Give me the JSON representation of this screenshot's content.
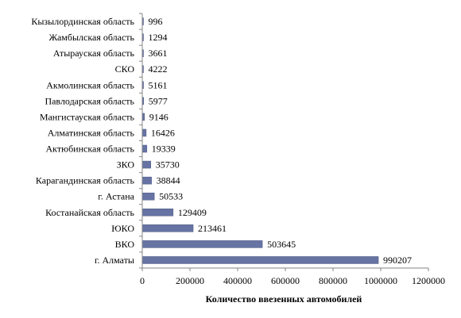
{
  "chart_data": {
    "type": "bar",
    "orientation": "horizontal",
    "categories": [
      "Кызылординская область",
      "Жамбылская область",
      "Атырауская область",
      "СКО",
      "Акмолинская область",
      "Павлодарская область",
      "Мангистауская область",
      "Алматинская область",
      "Актюбинская область",
      "ЗКО",
      "Карагандинская область",
      "г. Астана",
      "Костанайская область",
      "ЮКО",
      "ВКО",
      "г. Алматы"
    ],
    "values": [
      996,
      1294,
      3661,
      4222,
      5161,
      5977,
      9146,
      16426,
      19339,
      35730,
      38844,
      50533,
      129409,
      213461,
      503645,
      990207
    ],
    "value_labels": [
      "996",
      "1294",
      "3661",
      "4222",
      "5161",
      "5977",
      "9146",
      "16426",
      "19339",
      "35730",
      "38844",
      "50533",
      "129409",
      "213461",
      "503645",
      "990207"
    ],
    "xlabel": "Количество ввезенных  автомобилей",
    "ylabel": "",
    "xlim": [
      0,
      1200000
    ],
    "xticks": [
      0,
      200000,
      400000,
      600000,
      800000,
      1000000,
      1200000
    ],
    "xtick_labels": [
      "0",
      "200000",
      "400000",
      "600000",
      "800000",
      "1000000",
      "1200000"
    ],
    "grid": false,
    "legend": "none",
    "colors": {
      "bar": "#6673A3",
      "bar_edge": "#4F5A85",
      "axis": "#868686"
    }
  }
}
